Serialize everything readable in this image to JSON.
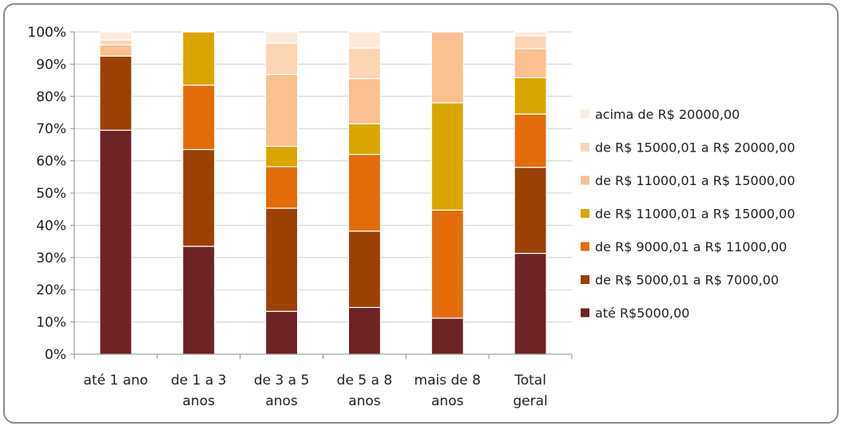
{
  "chart_data": {
    "type": "bar",
    "stacked": true,
    "percent": true,
    "title": "",
    "xlabel": "",
    "ylabel": "",
    "ylim": [
      0,
      100
    ],
    "y_ticks": [
      "0%",
      "10%",
      "20%",
      "30%",
      "40%",
      "50%",
      "60%",
      "70%",
      "80%",
      "90%",
      "100%"
    ],
    "grid": true,
    "legend_position": "right",
    "categories": [
      [
        "até 1 ano"
      ],
      [
        "de 1 a 3",
        "anos"
      ],
      [
        "de 3 a 5",
        "anos"
      ],
      [
        "de 5 a 8",
        "anos"
      ],
      [
        "mais de 8",
        "anos"
      ],
      [
        "Total",
        "geral"
      ]
    ],
    "series": [
      {
        "name": "até R$5000,00",
        "color": "#6e2324",
        "values": [
          69.5,
          33.5,
          13.3,
          14.5,
          11.2,
          31.3
        ]
      },
      {
        "name": "de R$ 5000,01 a R$ 7000,00",
        "color": "#9b4106",
        "values": [
          23.0,
          30.0,
          32.0,
          23.7,
          0,
          26.7
        ]
      },
      {
        "name": "de R$ 9000,01 a R$ 11000,00",
        "color": "#e36c0a",
        "values": [
          0,
          20.0,
          12.9,
          23.8,
          33.5,
          16.5
        ]
      },
      {
        "name": "de R$ 11000,01 a R$ 15000,00",
        "color": "#d9a600",
        "values": [
          0,
          16.5,
          6.3,
          9.5,
          33.3,
          11.3
        ]
      },
      {
        "name": "de R$ 11000,01 a R$ 15000,00",
        "color": "#fac090",
        "values": [
          3.5,
          0,
          22.3,
          14.0,
          22.0,
          9.0
        ]
      },
      {
        "name": "de R$ 15000,01 a R$ 20000,00",
        "color": "#fcd5b5",
        "values": [
          1.5,
          0,
          9.7,
          9.5,
          0,
          4.0
        ]
      },
      {
        "name": "acima de R$ 20000,00",
        "color": "#fdeada",
        "values": [
          2.5,
          0,
          3.5,
          5.0,
          0,
          1.2
        ]
      }
    ],
    "legend_order": [
      6,
      5,
      4,
      3,
      2,
      1,
      0
    ]
  }
}
